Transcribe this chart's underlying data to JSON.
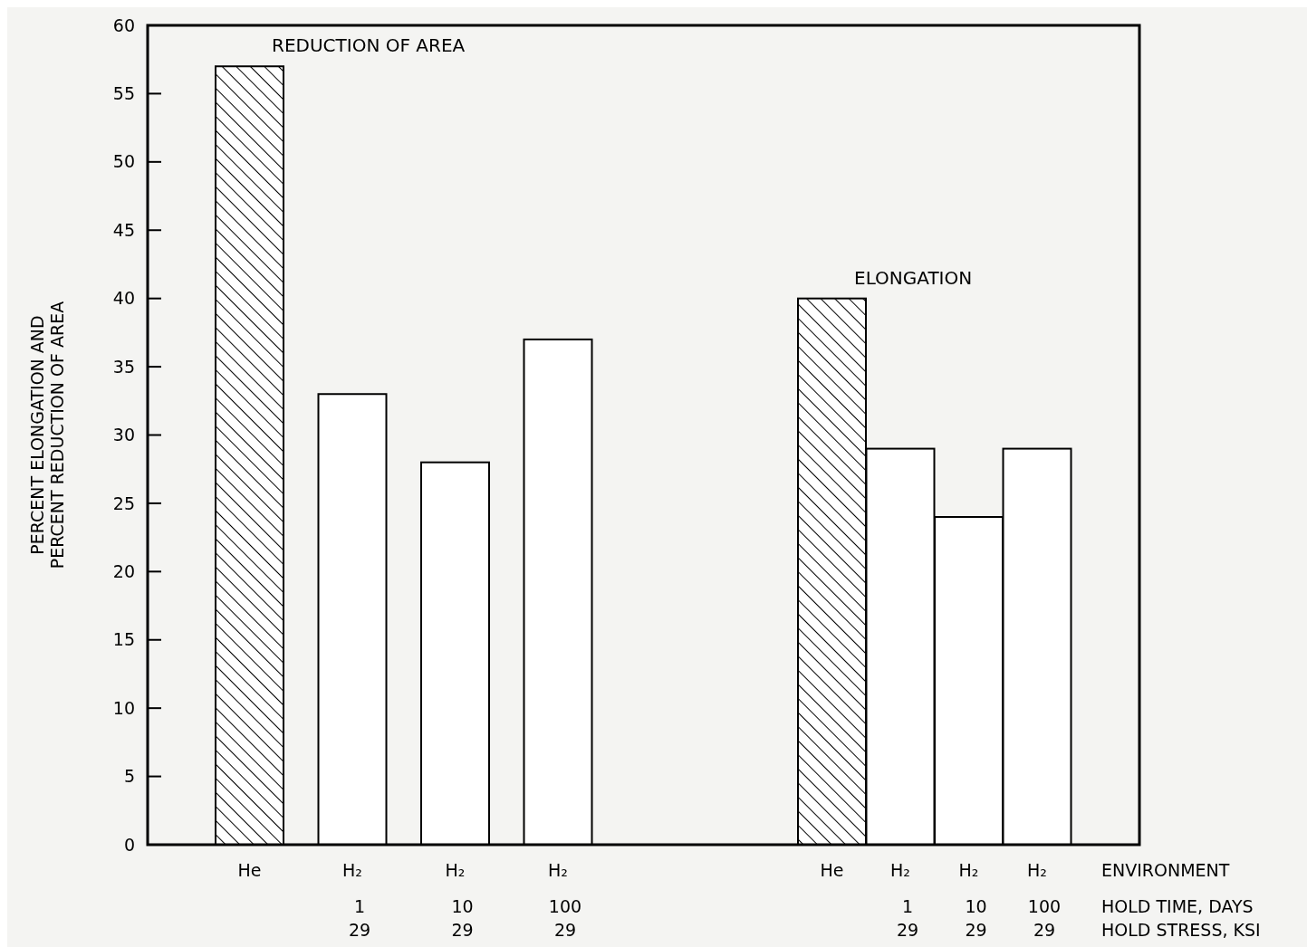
{
  "chart_data": {
    "type": "bar",
    "ylabel": "PERCENT ELONGATION AND\nPERCENT REDUCTION OF AREA",
    "categories": [
      "He",
      "H₂\n1\n29",
      "H₂\n10\n29",
      "H₂\n100\n29",
      "He",
      "H₂\n1\n29",
      "H₂\n10\n29",
      "H₂\n100\n29"
    ],
    "series": [
      {
        "name": "REDUCTION OF AREA",
        "values": [
          57,
          33,
          28,
          37,
          null,
          null,
          null,
          null
        ],
        "colors": [
          "#000000",
          "#ffffff",
          "#ffffff",
          "#ffffff",
          null,
          null,
          null,
          null
        ]
      },
      {
        "name": "ELONGATION",
        "values": [
          null,
          null,
          null,
          null,
          40,
          29,
          24,
          29
        ],
        "colors": [
          null,
          null,
          null,
          null,
          "#000000",
          "#ffffff",
          "#ffffff",
          "#ffffff"
        ]
      }
    ],
    "ylim": [
      0,
      60
    ],
    "yticks": [
      0,
      5,
      10,
      15,
      20,
      25,
      30,
      35,
      40,
      45,
      50,
      55,
      60
    ],
    "grid": false,
    "annotations": [
      "ENVIRONMENT",
      "HOLD TIME, DAYS",
      "HOLD STRESS, KSI"
    ]
  }
}
